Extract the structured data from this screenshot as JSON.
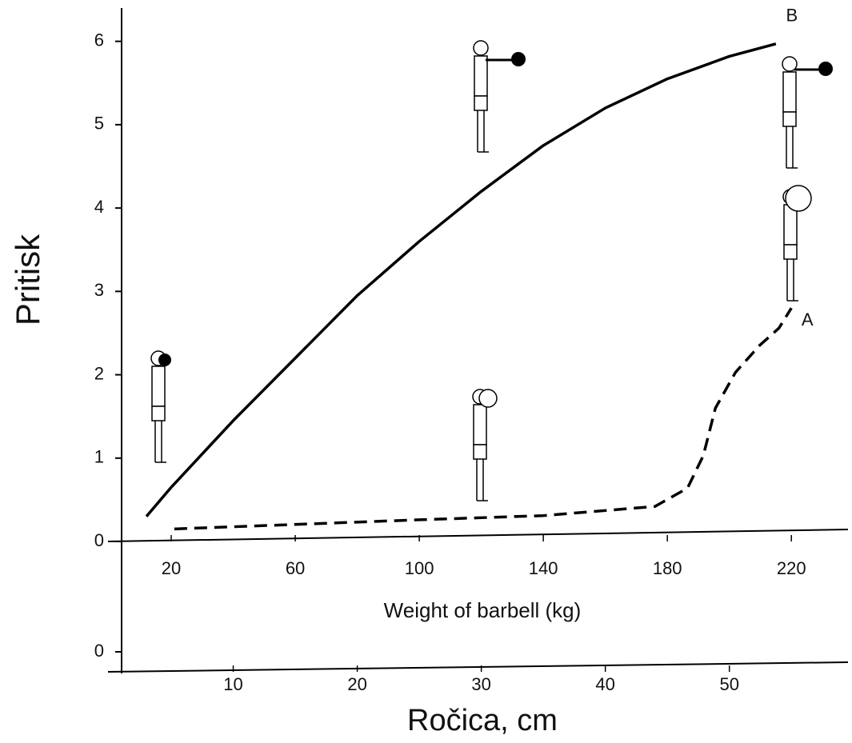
{
  "chart_data": {
    "type": "line",
    "y_label": "Pritisk",
    "x_label": "Weight of barbell (kg)",
    "ylim": [
      0,
      6.4
    ],
    "yticks": [
      0,
      1,
      2,
      3,
      4,
      5,
      6
    ],
    "xlim": [
      4,
      238
    ],
    "xticks": [
      20,
      60,
      100,
      140,
      180,
      220
    ],
    "x2_label": "Ročica, cm",
    "x2lim": [
      1,
      59.5
    ],
    "x2ticks": [
      10,
      20,
      30,
      40,
      50
    ],
    "x2_yticks": [
      0
    ],
    "series": [
      {
        "name": "B",
        "color": "#000000",
        "dashed": false,
        "x": [
          12,
          20,
          40,
          60,
          80,
          100,
          120,
          140,
          160,
          180,
          200,
          215
        ],
        "values": [
          0.3,
          0.65,
          1.45,
          2.2,
          2.95,
          3.6,
          4.2,
          4.75,
          5.2,
          5.55,
          5.82,
          5.97
        ]
      },
      {
        "name": "A",
        "color": "#000000",
        "dashed": true,
        "x": [
          21,
          100,
          140,
          176,
          186.5,
          191.6,
          195.5,
          202,
          209.7,
          216,
          220
        ],
        "values": [
          0.15,
          0.26,
          0.31,
          0.42,
          0.64,
          1.03,
          1.6,
          2.03,
          2.35,
          2.56,
          2.8
        ]
      }
    ]
  }
}
